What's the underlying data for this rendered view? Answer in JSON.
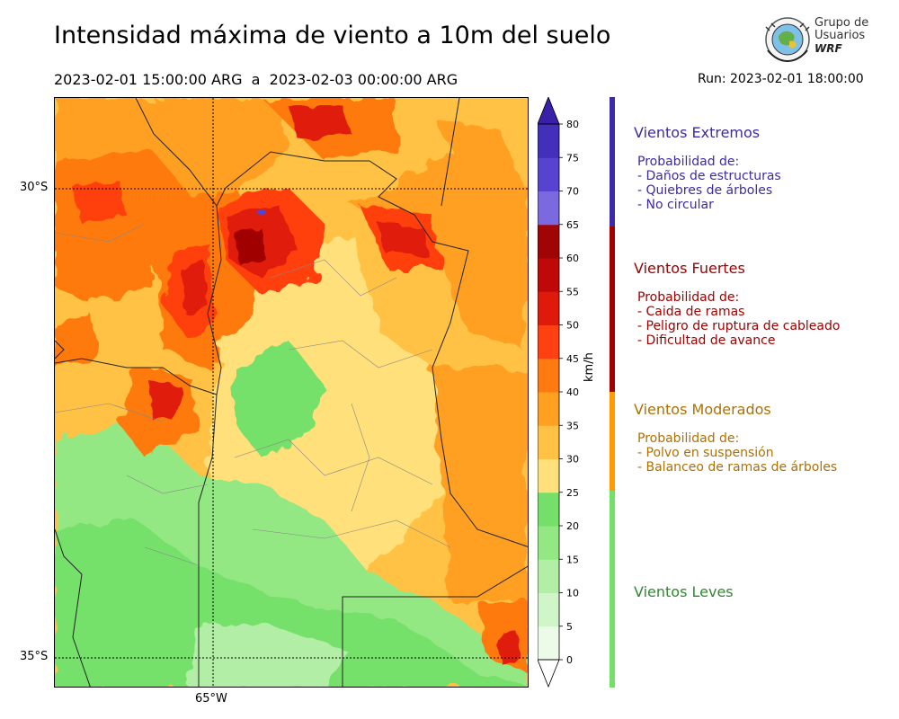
{
  "header": {
    "title": "Intensidad máxima de viento a 10m del suelo",
    "period_start": "2023-02-01 15:00:00 ARG",
    "period_sep": "a",
    "period_end": "2023-02-03 00:00:00 ARG",
    "run": "Run: 2023-02-01 18:00:00"
  },
  "logo": {
    "line1": "Grupo de",
    "line2": "Usuarios",
    "line3": "WRF"
  },
  "map": {
    "lat_labels": [
      "30°S",
      "35°S"
    ],
    "lon_labels": [
      "65°W"
    ]
  },
  "colorbar": {
    "units": "km/h",
    "ticks": [
      0,
      5,
      10,
      15,
      20,
      25,
      30,
      35,
      40,
      45,
      50,
      55,
      60,
      65,
      70,
      75,
      80
    ],
    "colors": [
      "#ebfbe8",
      "#d0f5c8",
      "#b3eea6",
      "#93e883",
      "#74e06a",
      "#ffe07a",
      "#ffc244",
      "#ffa020",
      "#ff7a10",
      "#ff4010",
      "#e01a0a",
      "#bf0808",
      "#a00404",
      "#7b69e0",
      "#5644d0",
      "#4230bb",
      "#3a20a8"
    ]
  },
  "legend": [
    {
      "title": "Vientos Extremos",
      "color": "#3d2aa6",
      "lines": [
        "Probabilidad de:",
        "- Daños de estructuras",
        "- Quiebres de árboles",
        "- No circular"
      ]
    },
    {
      "title": "Vientos Fuertes",
      "color": "#a00000",
      "lines": [
        "Probabilidad de:",
        "- Caida de ramas",
        "- Peligro de ruptura de cableado",
        "- Dificultad de avance"
      ]
    },
    {
      "title": "Vientos Moderados",
      "color": "#b07000",
      "lines": [
        "Probabilidad de:",
        "- Polvo en suspensión",
        "- Balanceo de ramas de árboles"
      ]
    },
    {
      "title": "Vientos Leves",
      "color": "#2e8a2e",
      "lines": []
    }
  ],
  "legend_bar_colors": [
    "#3d2aa6",
    "#a00000",
    "#ff9a00",
    "#74e06a"
  ]
}
